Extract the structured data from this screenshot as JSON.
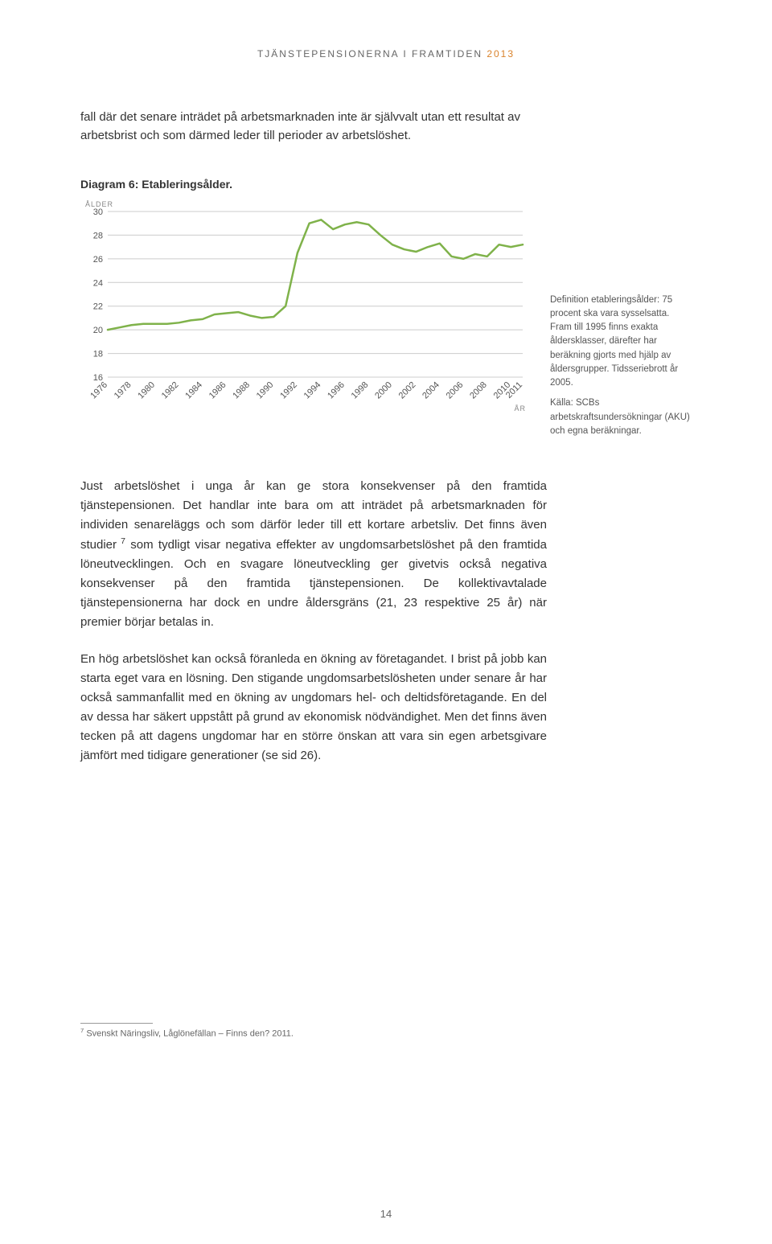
{
  "running_head": {
    "pre": "TJÄNSTEPENSIONERNA I FRAMTIDEN ",
    "year": "2013",
    "year_color": "#d9822b"
  },
  "intro": "fall där det senare inträdet på arbetsmarknaden inte är självvalt utan ett resultat av arbetsbrist och som därmed leder till perioder av arbetslöshet.",
  "figure": {
    "title": "Diagram 6: Etableringsålder.",
    "y_axis_title": "ÅLDER",
    "x_axis_title": "ÅR",
    "ylim": [
      16,
      30
    ],
    "yticks": [
      16,
      18,
      20,
      22,
      24,
      26,
      28,
      30
    ],
    "xlim": [
      1976,
      2011
    ],
    "xticks": [
      1976,
      1978,
      1980,
      1982,
      1984,
      1986,
      1988,
      1990,
      1992,
      1994,
      1996,
      1998,
      2000,
      2002,
      2004,
      2006,
      2008,
      2010,
      2011
    ],
    "line_color": "#7fb24a",
    "line_width": 2.5,
    "grid_color": "#cccccc",
    "bg_color": "#ffffff",
    "series": {
      "x": [
        1976,
        1977,
        1978,
        1979,
        1980,
        1981,
        1982,
        1983,
        1984,
        1985,
        1986,
        1987,
        1988,
        1989,
        1990,
        1991,
        1992,
        1993,
        1994,
        1995,
        1996,
        1997,
        1998,
        1999,
        2000,
        2001,
        2002,
        2003,
        2004,
        2005,
        2006,
        2007,
        2008,
        2009,
        2010,
        2011
      ],
      "y": [
        20.0,
        20.2,
        20.4,
        20.5,
        20.5,
        20.5,
        20.6,
        20.8,
        20.9,
        21.3,
        21.4,
        21.5,
        21.2,
        21.0,
        21.1,
        22.0,
        26.5,
        29.0,
        29.3,
        28.5,
        28.9,
        29.1,
        28.9,
        28.0,
        27.2,
        26.8,
        26.6,
        27.0,
        27.3,
        26.2,
        26.0,
        26.4,
        26.2,
        27.2,
        27.0,
        27.2
      ]
    },
    "caption1": "Definition etableringsålder: 75 procent ska vara sysselsatta. Fram till 1995 finns exakta åldersklasser, därefter har beräkning gjorts med hjälp av åldersgrupper. Tidsseriebrott år 2005.",
    "caption2": "Källa: SCBs arbetskraftsundersökningar (AKU) och egna beräkningar."
  },
  "body": {
    "p1_a": "Just arbetslöshet i unga år kan ge stora konsekvenser på den framtida tjänstepensionen. Det handlar inte bara om att inträdet på arbetsmarknaden för individen senareläggs och som därför leder till ett kortare arbetsliv. Det finns även studier",
    "p1_sup": " 7",
    "p1_b": " som tydligt visar negativa effekter av ungdomsarbetslöshet på den framtida löneutvecklingen. Och en svagare löneutveckling ger givetvis också negativa konsekvenser på den framtida tjänstepensionen. De kollektivavtalade tjänstepensionerna har dock en undre åldersgräns (21, 23 respektive 25 år) när premier börjar betalas in.",
    "p2": "En hög arbetslöshet kan också föranleda en ökning av företagandet. I brist på jobb kan starta eget vara en lösning. Den stigande ungdomsarbetslösheten under senare år har också sammanfallit med en ökning av ungdomars hel- och deltidsföretagande. En del av dessa har säkert uppstått på grund av ekonomisk nödvändighet. Men det finns även tecken på att dagens ungdomar har en större önskan att vara sin egen arbetsgivare jämfört med tidigare generationer (se sid 26)."
  },
  "footnote": {
    "num": "7",
    "text": " Svenskt Näringsliv, Låglönefällan – Finns den? 2011."
  },
  "page_number": "14"
}
